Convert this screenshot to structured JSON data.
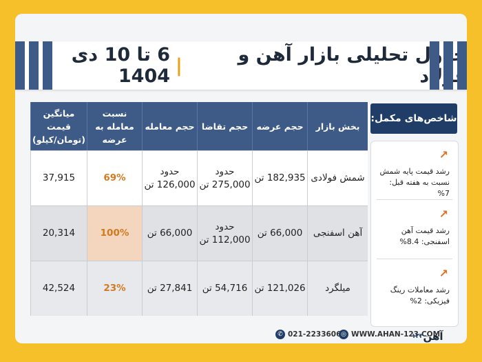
{
  "title": {
    "main": "جدول تحلیلی بازار آهن و فولاد",
    "separator": "|",
    "dates": "6 تا 10 دی 1404"
  },
  "table": {
    "headers": {
      "sector": "بخش بازار",
      "supply": "حجم عرضه",
      "demand": "حجم تقاضا",
      "traded": "حجم معامله",
      "ratio": "نسبت معامله به عرضه",
      "avg_price": "میانگین قیمت (تومان/کیلو)"
    },
    "rows": [
      {
        "sector": "شمش فولادی",
        "supply": "182,935 تن",
        "demand": "حدود 275,000 تن",
        "traded": "حدود 126,000 تن",
        "ratio": "69%",
        "avg_price": "37,915"
      },
      {
        "sector": "آهن اسفنجی",
        "supply": "66,000 تن",
        "demand": "حدود 112,000 تن",
        "traded": "66,000 تن",
        "ratio": "100%",
        "avg_price": "20,314"
      },
      {
        "sector": "میلگرد",
        "supply": "121,026 تن",
        "demand": "54,716 تن",
        "traded": "27,841 تن",
        "ratio": "23%",
        "avg_price": "42,524"
      }
    ]
  },
  "side": {
    "heading": "شاخص‌های مکمل:",
    "metrics": [
      {
        "text": "رشد قیمت پایه شمش نسبت به هفته قبل: 7%",
        "icon": "arrow-up-right-icon"
      },
      {
        "text": "رشد قیمت آهن اسفنجی: 8.4%",
        "icon": "arrow-up-right-icon"
      },
      {
        "text": "رشد معاملات رینگ فیزیکی: 2%",
        "icon": "arrow-up-right-icon"
      }
    ]
  },
  "footer": {
    "phone": "021-22336060",
    "website": "WWW.AHAN-123.COM",
    "logo": "آهن",
    "logo_mark": "۱۲۳"
  },
  "colors": {
    "background": "#f6c02a",
    "header": "#3e5b87",
    "accent": "#d27a1f"
  }
}
